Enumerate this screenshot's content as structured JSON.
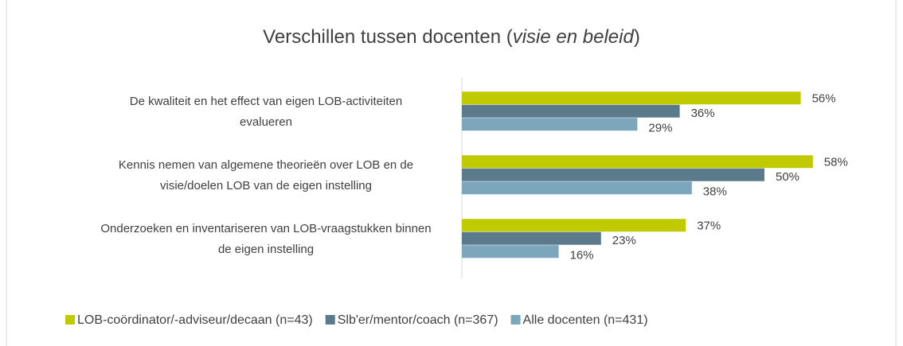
{
  "chart_data": {
    "type": "bar",
    "orientation": "horizontal",
    "title": [
      "Verschillen tussen docenten (",
      "visie en beleid",
      ")"
    ],
    "categories": [
      [
        "De kwaliteit en het effect van eigen LOB-activiteiten",
        "evalueren"
      ],
      [
        "Kennis nemen van algemene theorieën over LOB en de",
        "visie/doelen LOB van de eigen instelling"
      ],
      [
        "Onderzoeken en inventariseren van LOB-vraagstukken binnen",
        "de eigen instelling"
      ]
    ],
    "series": [
      {
        "name": "LOB-coördinator/-adviseur/decaan (n=43)",
        "color": "#bfca00",
        "values": [
          56,
          58,
          37
        ],
        "value_labels": [
          "56%",
          "58%",
          "37%"
        ]
      },
      {
        "name": "Slb'er/mentor/coach (n=367)",
        "color": "#5b7a8c",
        "values": [
          36,
          50,
          23
        ],
        "value_labels": [
          "36%",
          "50%",
          "23%"
        ]
      },
      {
        "name": "Alle docenten (n=431)",
        "color": "#7ba6bb",
        "values": [
          29,
          38,
          16
        ],
        "value_labels": [
          "29%",
          "38%",
          "16%"
        ]
      }
    ],
    "legend": "bottom"
  }
}
